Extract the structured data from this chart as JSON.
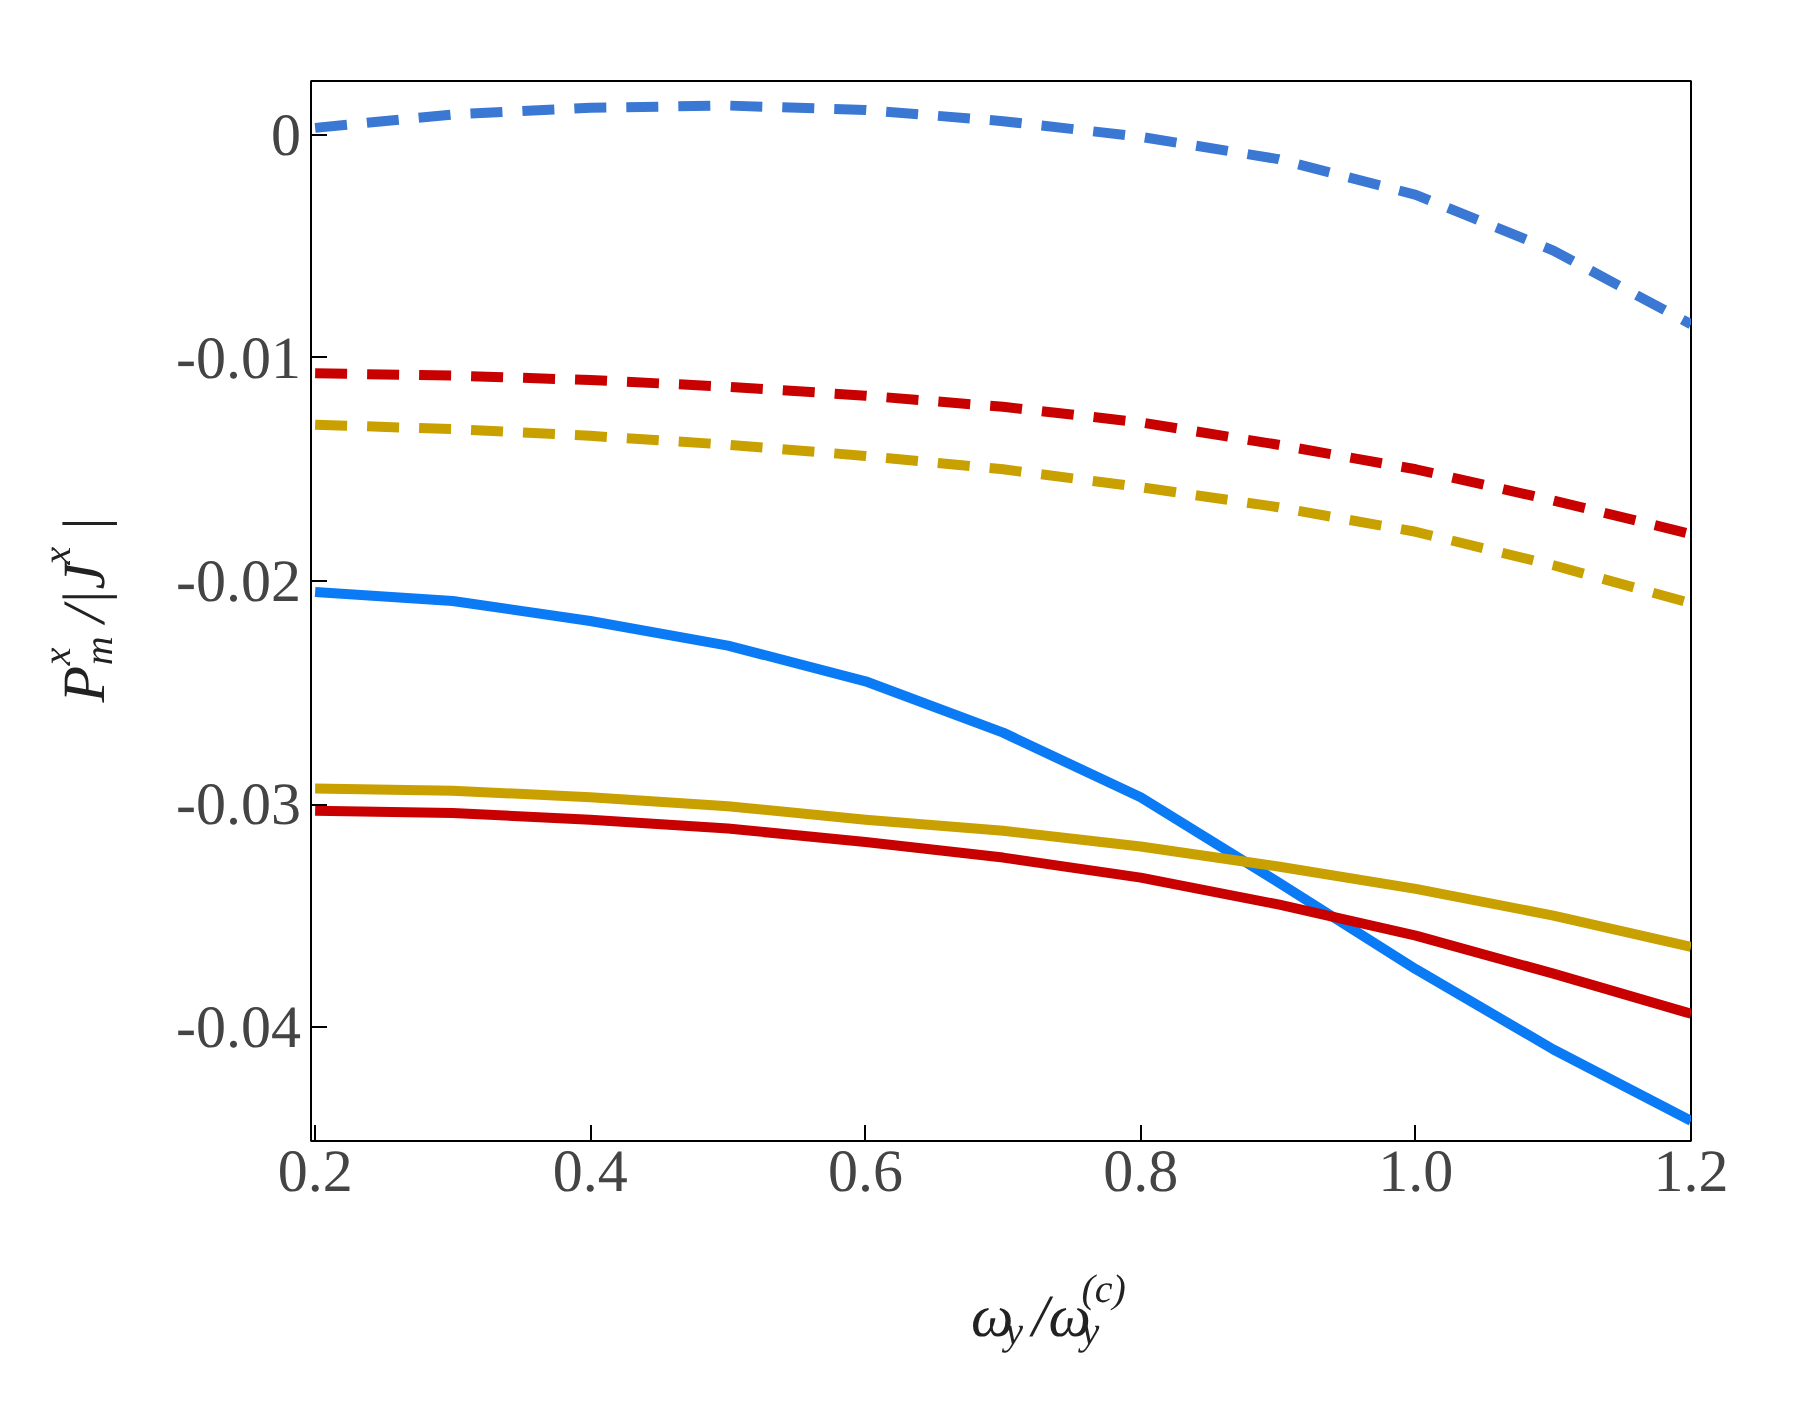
{
  "chart_data": {
    "type": "line",
    "xlabel": "ω$_{y}$/ω$_{y}$$^{(c)}$",
    "ylabel": "P$_{m}$$^{x}$/|J$^{x}$|",
    "x": [
      0.2,
      0.3,
      0.4,
      0.5,
      0.6,
      0.7,
      0.8,
      0.9,
      1.0,
      1.1,
      1.2
    ],
    "series": [
      {
        "color": "#3a78d4",
        "line_style": "dashed",
        "values": [
          0.0003,
          0.0009,
          0.0012,
          0.0013,
          0.0011,
          0.0006,
          -0.0001,
          -0.0011,
          -0.0027,
          -0.0052,
          -0.0085
        ]
      },
      {
        "color": "#c80000",
        "line_style": "dashed",
        "values": [
          -0.0107,
          -0.0108,
          -0.011,
          -0.0113,
          -0.0117,
          -0.0122,
          -0.0129,
          -0.0139,
          -0.015,
          -0.0164,
          -0.0179
        ]
      },
      {
        "color": "#c8a000",
        "line_style": "dashed",
        "values": [
          -0.013,
          -0.0132,
          -0.0135,
          -0.0139,
          -0.0144,
          -0.015,
          -0.0158,
          -0.0167,
          -0.0178,
          -0.0193,
          -0.021
        ]
      },
      {
        "color": "#0a7af5",
        "line_style": "solid",
        "values": [
          -0.0205,
          -0.0209,
          -0.0218,
          -0.0229,
          -0.0245,
          -0.0268,
          -0.0297,
          -0.0335,
          -0.0374,
          -0.041,
          -0.0442
        ]
      },
      {
        "color": "#c8a000",
        "line_style": "solid",
        "values": [
          -0.0293,
          -0.0294,
          -0.0297,
          -0.0301,
          -0.0307,
          -0.0312,
          -0.0319,
          -0.0328,
          -0.0338,
          -0.035,
          -0.0364
        ]
      },
      {
        "color": "#c80000",
        "line_style": "solid",
        "values": [
          -0.0303,
          -0.0304,
          -0.0307,
          -0.0311,
          -0.0317,
          -0.0324,
          -0.0333,
          -0.0345,
          -0.0359,
          -0.0376,
          -0.0394
        ]
      }
    ],
    "xlim": [
      0.197,
      1.2
    ],
    "ylim": [
      -0.0451,
      0.0024
    ],
    "xticks": [
      0.2,
      0.4,
      0.6,
      0.8,
      {
        "value": 1.0,
        "label": "1.0"
      },
      1.2
    ],
    "yticks": [
      -0.04,
      -0.03,
      -0.02,
      -0.01,
      0
    ],
    "grid": false
  }
}
